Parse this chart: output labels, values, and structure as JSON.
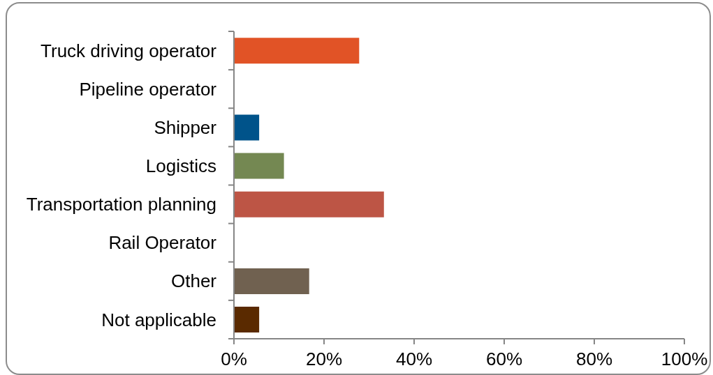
{
  "chart_data": {
    "type": "bar",
    "orientation": "horizontal",
    "categories": [
      "Truck driving operator",
      "Pipeline operator",
      "Shipper",
      "Logistics",
      "Transportation planning",
      "Rail Operator",
      "Other",
      "Not applicable"
    ],
    "values": [
      27.8,
      0,
      5.6,
      11.1,
      33.3,
      0,
      16.7,
      5.6
    ],
    "colors": [
      "#e15326",
      "#e15326",
      "#00538a",
      "#748852",
      "#bd5545",
      "#bd5545",
      "#706150",
      "#5a2a00"
    ],
    "xlim": [
      0,
      100
    ],
    "xticks": [
      {
        "value": 0,
        "label": "0%"
      },
      {
        "value": 20,
        "label": "20%"
      },
      {
        "value": 40,
        "label": "40%"
      },
      {
        "value": 60,
        "label": "60%"
      },
      {
        "value": 80,
        "label": "80%"
      },
      {
        "value": 100,
        "label": "100%"
      }
    ]
  }
}
